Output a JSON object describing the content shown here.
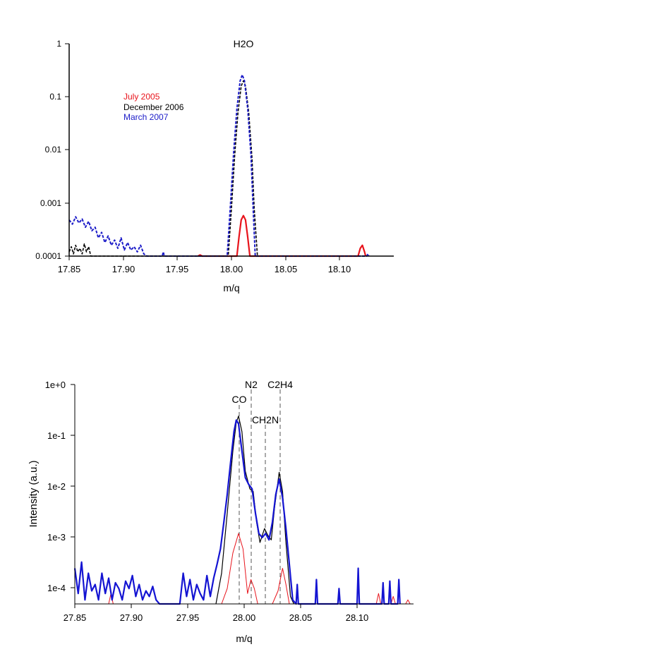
{
  "chart_data": [
    {
      "type": "line",
      "title": "H2O",
      "xlabel": "m/q",
      "ylabel": "",
      "yscale": "log",
      "xlim": [
        17.85,
        18.15
      ],
      "ylim": [
        0.0001,
        1
      ],
      "xticks": [
        "17.85",
        "17.90",
        "17.95",
        "18.00",
        "18.05",
        "18.10"
      ],
      "yticks": [
        "0.0001",
        "0.001",
        "0.01",
        "0.1",
        "1"
      ],
      "legend_position": "top-left",
      "series": [
        {
          "name": "July 2005",
          "color": "#e8141c",
          "style": "solid",
          "points": [
            [
              17.969,
              0.0001
            ],
            [
              17.971,
              0.000105
            ],
            [
              17.973,
              0.0001
            ],
            [
              18.005,
              0.0001
            ],
            [
              18.007,
              0.00023
            ],
            [
              18.009,
              0.00048
            ],
            [
              18.011,
              0.00058
            ],
            [
              18.013,
              0.00048
            ],
            [
              18.015,
              0.00023
            ],
            [
              18.017,
              0.0001
            ],
            [
              18.117,
              0.0001
            ],
            [
              18.119,
              0.00014
            ],
            [
              18.121,
              0.00016
            ],
            [
              18.123,
              0.00012
            ],
            [
              18.124,
              0.0001
            ]
          ]
        },
        {
          "name": "December 2006",
          "color": "#000000",
          "style": "dashed",
          "points": [
            [
              17.85,
              0.00012
            ],
            [
              17.852,
              0.00015
            ],
            [
              17.854,
              0.00011
            ],
            [
              17.856,
              0.00016
            ],
            [
              17.858,
              0.00012
            ],
            [
              17.86,
              0.00014
            ],
            [
              17.862,
              0.00011
            ],
            [
              17.864,
              0.00017
            ],
            [
              17.866,
              0.00012
            ],
            [
              17.868,
              0.00015
            ],
            [
              17.87,
              0.0001
            ],
            [
              17.997,
              0.0001
            ],
            [
              18.0,
              0.0008
            ],
            [
              18.003,
              0.008
            ],
            [
              18.006,
              0.05
            ],
            [
              18.009,
              0.16
            ],
            [
              18.011,
              0.2
            ],
            [
              18.013,
              0.16
            ],
            [
              18.016,
              0.05
            ],
            [
              18.019,
              0.007
            ],
            [
              18.021,
              0.0008
            ],
            [
              18.024,
              0.0001
            ]
          ]
        },
        {
          "name": "March 2007",
          "color": "#1c1cc8",
          "style": "dashed",
          "points": [
            [
              17.85,
              0.00048
            ],
            [
              17.853,
              0.0004
            ],
            [
              17.856,
              0.00055
            ],
            [
              17.859,
              0.00042
            ],
            [
              17.862,
              0.0005
            ],
            [
              17.865,
              0.00035
            ],
            [
              17.868,
              0.00045
            ],
            [
              17.871,
              0.0003
            ],
            [
              17.874,
              0.00035
            ],
            [
              17.877,
              0.00022
            ],
            [
              17.88,
              0.00028
            ],
            [
              17.883,
              0.00018
            ],
            [
              17.886,
              0.00024
            ],
            [
              17.889,
              0.00016
            ],
            [
              17.892,
              0.0002
            ],
            [
              17.895,
              0.00014
            ],
            [
              17.898,
              0.00022
            ],
            [
              17.901,
              0.00013
            ],
            [
              17.904,
              0.00018
            ],
            [
              17.907,
              0.00013
            ],
            [
              17.91,
              0.00015
            ],
            [
              17.913,
              0.00012
            ],
            [
              17.916,
              0.00016
            ],
            [
              17.919,
              0.00011
            ],
            [
              17.922,
              0.0001
            ],
            [
              17.936,
              0.0001
            ],
            [
              17.937,
              0.00012
            ],
            [
              17.938,
              0.0001
            ],
            [
              17.996,
              0.0001
            ],
            [
              17.999,
              0.0009
            ],
            [
              18.002,
              0.009
            ],
            [
              18.005,
              0.06
            ],
            [
              18.008,
              0.2
            ],
            [
              18.01,
              0.26
            ],
            [
              18.012,
              0.2
            ],
            [
              18.015,
              0.06
            ],
            [
              18.018,
              0.008
            ],
            [
              18.02,
              0.0008
            ],
            [
              18.022,
              0.0001
            ],
            [
              18.125,
              0.0001
            ],
            [
              18.126,
              0.00011
            ],
            [
              18.127,
              0.0001
            ]
          ]
        }
      ]
    },
    {
      "type": "line",
      "title": "",
      "xlabel": "m/q",
      "ylabel": "Intensity (a.u.)",
      "yscale": "log",
      "xlim": [
        27.85,
        28.15
      ],
      "ylim": [
        5e-05,
        1
      ],
      "xticks": [
        "27.85",
        "27.90",
        "27.95",
        "28.00",
        "28.05",
        "28.10"
      ],
      "yticks": [
        "1e-4",
        "1e-3",
        "1e-2",
        "1e-1",
        "1e+0"
      ],
      "annotations": [
        {
          "label": "CO",
          "x": 27.995
        },
        {
          "label": "N2",
          "x": 28.006
        },
        {
          "label": "CH2N",
          "x": 28.019
        },
        {
          "label": "C2H4",
          "x": 28.031
        }
      ],
      "series": [
        {
          "color": "#e8141c",
          "style": "solid",
          "points": [
            [
              27.88,
              5e-05
            ],
            [
              27.882,
              8e-05
            ],
            [
              27.884,
              5e-05
            ],
            [
              27.98,
              5e-05
            ],
            [
              27.985,
              0.0001
            ],
            [
              27.99,
              0.0005
            ],
            [
              27.995,
              0.0012
            ],
            [
              27.999,
              0.0006
            ],
            [
              28.003,
              8e-05
            ],
            [
              28.006,
              0.00015
            ],
            [
              28.009,
              0.0001
            ],
            [
              28.012,
              5e-05
            ],
            [
              28.025,
              5e-05
            ],
            [
              28.03,
              9e-05
            ],
            [
              28.034,
              0.00025
            ],
            [
              28.037,
              0.00012
            ],
            [
              28.04,
              5e-05
            ],
            [
              28.117,
              5e-05
            ],
            [
              28.119,
              8e-05
            ],
            [
              28.121,
              5e-05
            ],
            [
              28.13,
              5e-05
            ],
            [
              28.132,
              7e-05
            ],
            [
              28.134,
              5e-05
            ],
            [
              28.143,
              5e-05
            ],
            [
              28.145,
              6e-05
            ],
            [
              28.147,
              5e-05
            ]
          ]
        },
        {
          "color": "#000000",
          "style": "solid",
          "points": [
            [
              27.975,
              5e-05
            ],
            [
              27.98,
              0.0002
            ],
            [
              27.985,
              0.003
            ],
            [
              27.99,
              0.05
            ],
            [
              27.993,
              0.18
            ],
            [
              27.995,
              0.24
            ],
            [
              27.998,
              0.12
            ],
            [
              28.001,
              0.02
            ],
            [
              28.005,
              0.009
            ],
            [
              28.008,
              0.008
            ],
            [
              28.011,
              0.002
            ],
            [
              28.014,
              0.0008
            ],
            [
              28.018,
              0.0015
            ],
            [
              28.021,
              0.0011
            ],
            [
              28.024,
              0.0009
            ],
            [
              28.027,
              0.004
            ],
            [
              28.031,
              0.019
            ],
            [
              28.034,
              0.008
            ],
            [
              28.037,
              0.0008
            ],
            [
              28.041,
              7e-05
            ],
            [
              28.044,
              5e-05
            ]
          ]
        },
        {
          "color": "#1414d2",
          "style": "solid",
          "points": [
            [
              27.85,
              0.00025
            ],
            [
              27.853,
              8e-05
            ],
            [
              27.856,
              0.00033
            ],
            [
              27.859,
              6e-05
            ],
            [
              27.862,
              0.0002
            ],
            [
              27.865,
              9e-05
            ],
            [
              27.868,
              0.00012
            ],
            [
              27.871,
              6e-05
            ],
            [
              27.874,
              0.0002
            ],
            [
              27.877,
              8e-05
            ],
            [
              27.88,
              0.00016
            ],
            [
              27.883,
              6e-05
            ],
            [
              27.886,
              0.00013
            ],
            [
              27.889,
              0.0001
            ],
            [
              27.892,
              6e-05
            ],
            [
              27.895,
              0.00014
            ],
            [
              27.898,
              0.0001
            ],
            [
              27.901,
              0.00018
            ],
            [
              27.904,
              7e-05
            ],
            [
              27.907,
              0.00012
            ],
            [
              27.91,
              6e-05
            ],
            [
              27.913,
              9e-05
            ],
            [
              27.916,
              7e-05
            ],
            [
              27.919,
              0.00011
            ],
            [
              27.922,
              6e-05
            ],
            [
              27.925,
              5e-05
            ],
            [
              27.943,
              5e-05
            ],
            [
              27.946,
              0.0002
            ],
            [
              27.949,
              7e-05
            ],
            [
              27.952,
              0.00015
            ],
            [
              27.955,
              6e-05
            ],
            [
              27.958,
              0.00012
            ],
            [
              27.961,
              8e-05
            ],
            [
              27.964,
              6e-05
            ],
            [
              27.967,
              0.00018
            ],
            [
              27.97,
              7e-05
            ],
            [
              27.973,
              0.00016
            ],
            [
              27.976,
              0.0003
            ],
            [
              27.979,
              0.0006
            ],
            [
              27.982,
              0.002
            ],
            [
              27.985,
              0.007
            ],
            [
              27.988,
              0.03
            ],
            [
              27.991,
              0.12
            ],
            [
              27.993,
              0.2
            ],
            [
              27.995,
              0.17
            ],
            [
              27.998,
              0.05
            ],
            [
              28.001,
              0.015
            ],
            [
              28.004,
              0.011
            ],
            [
              28.007,
              0.009
            ],
            [
              28.01,
              0.003
            ],
            [
              28.013,
              0.0012
            ],
            [
              28.016,
              0.001
            ],
            [
              28.019,
              0.0012
            ],
            [
              28.022,
              0.0009
            ],
            [
              28.025,
              0.002
            ],
            [
              28.028,
              0.007
            ],
            [
              28.031,
              0.014
            ],
            [
              28.034,
              0.006
            ],
            [
              28.037,
              0.0015
            ],
            [
              28.04,
              0.0003
            ],
            [
              28.043,
              6e-05
            ],
            [
              28.046,
              5e-05
            ],
            [
              28.047,
              0.00012
            ],
            [
              28.048,
              5e-05
            ],
            [
              28.063,
              5e-05
            ],
            [
              28.064,
              0.00015
            ],
            [
              28.065,
              5e-05
            ],
            [
              28.083,
              5e-05
            ],
            [
              28.084,
              0.0001
            ],
            [
              28.085,
              5e-05
            ],
            [
              28.1,
              5e-05
            ],
            [
              28.101,
              0.00025
            ],
            [
              28.102,
              5e-05
            ],
            [
              28.122,
              5e-05
            ],
            [
              28.123,
              0.00013
            ],
            [
              28.124,
              5e-05
            ],
            [
              28.128,
              5e-05
            ],
            [
              28.129,
              0.00014
            ],
            [
              28.13,
              5e-05
            ],
            [
              28.136,
              5e-05
            ],
            [
              28.137,
              0.00015
            ],
            [
              28.138,
              5e-05
            ]
          ]
        }
      ]
    }
  ]
}
